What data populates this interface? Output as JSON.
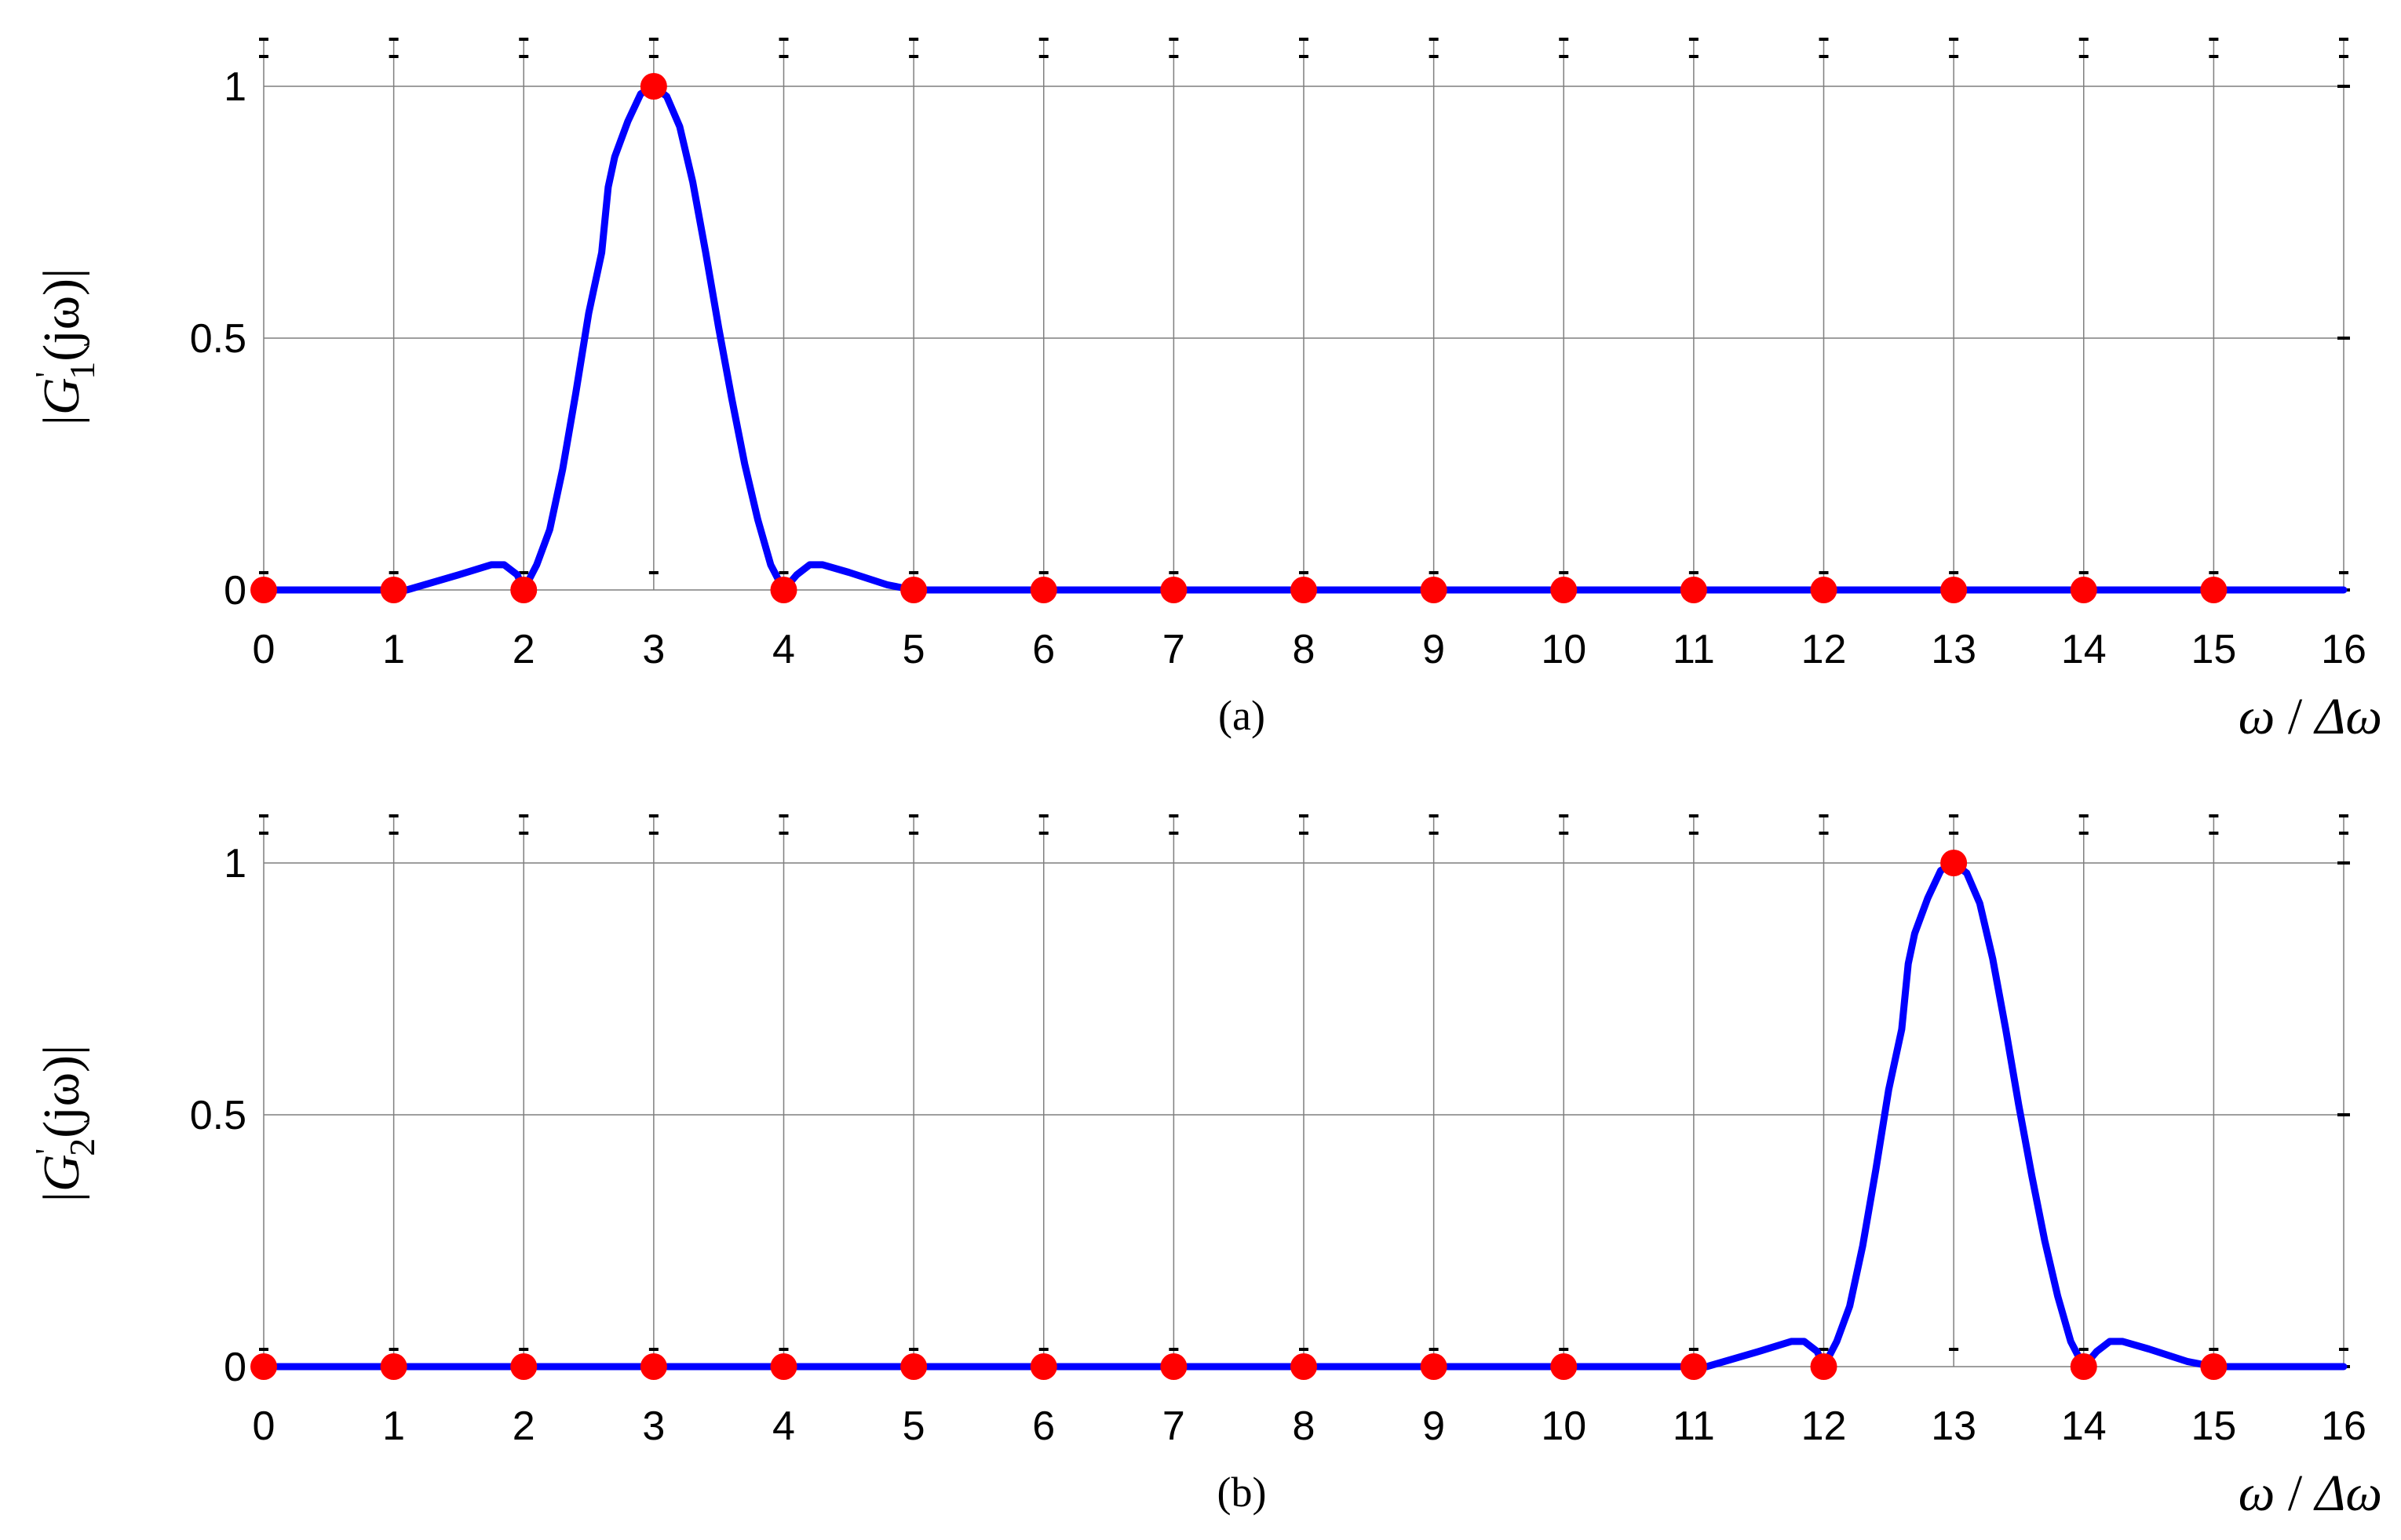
{
  "chart_data": [
    {
      "type": "line",
      "panel_label": "(a)",
      "ylabel": {
        "bar": "|",
        "base": "G",
        "sub": "1",
        "sup": "'",
        "arg": "(jω)"
      },
      "xlabel": {
        "num": "ω",
        "sep": " / ",
        "den": "Δω"
      },
      "xlim": [
        0,
        16
      ],
      "ylim": [
        0,
        1
      ],
      "x_ticks": [
        "0",
        "1",
        "2",
        "3",
        "4",
        "5",
        "6",
        "7",
        "8",
        "9",
        "10",
        "11",
        "12",
        "13",
        "14",
        "15",
        "16"
      ],
      "y_ticks": [
        "0",
        "0.5",
        "1"
      ],
      "grid": true,
      "series": [
        {
          "color": "#0000ff",
          "x": [
            0,
            1.1,
            1.5,
            1.75,
            1.85,
            1.95,
            2.0,
            2.1,
            2.2,
            2.3,
            2.4,
            2.5,
            2.6,
            2.65,
            2.7,
            2.8,
            2.9,
            3.0,
            3.1,
            3.2,
            3.3,
            3.4,
            3.5,
            3.6,
            3.7,
            3.8,
            3.9,
            4.0,
            4.1,
            4.2,
            4.3,
            4.5,
            4.8,
            5.0,
            6,
            7,
            8,
            9,
            10,
            11,
            12,
            13,
            14,
            15,
            15.9,
            16.0
          ],
          "y": [
            0,
            0,
            0.03,
            0.05,
            0.05,
            0.03,
            0,
            0.05,
            0.12,
            0.24,
            0.39,
            0.55,
            0.67,
            0.8,
            0.86,
            0.93,
            0.985,
            1.0,
            0.98,
            0.92,
            0.81,
            0.67,
            0.52,
            0.38,
            0.25,
            0.14,
            0.05,
            0,
            0.03,
            0.05,
            0.05,
            0.035,
            0.01,
            0,
            0,
            0,
            0,
            0,
            0,
            0,
            0,
            0,
            0,
            0,
            0,
            0
          ]
        }
      ],
      "markers": {
        "color": "#ff0000",
        "x": [
          0,
          1,
          2,
          3,
          4,
          5,
          6,
          7,
          8,
          9,
          10,
          11,
          12,
          13,
          14,
          15
        ],
        "y": [
          0,
          0,
          0,
          1,
          0,
          0,
          0,
          0,
          0,
          0,
          0,
          0,
          0,
          0,
          0,
          0
        ]
      }
    },
    {
      "type": "line",
      "panel_label": "(b)",
      "ylabel": {
        "bar": "|",
        "base": "G",
        "sub": "2",
        "sup": "'",
        "arg": "(jω)"
      },
      "xlabel": {
        "num": "ω",
        "sep": " / ",
        "den": "Δω"
      },
      "xlim": [
        0,
        16
      ],
      "ylim": [
        0,
        1
      ],
      "x_ticks": [
        "0",
        "1",
        "2",
        "3",
        "4",
        "5",
        "6",
        "7",
        "8",
        "9",
        "10",
        "11",
        "12",
        "13",
        "14",
        "15",
        "16"
      ],
      "y_ticks": [
        "0",
        "0.5",
        "1"
      ],
      "grid": true,
      "series": [
        {
          "color": "#0000ff",
          "x": [
            0,
            1,
            2,
            3,
            4,
            5,
            6,
            7,
            8,
            9,
            10,
            11,
            11.1,
            11.5,
            11.75,
            11.85,
            11.95,
            12.0,
            12.1,
            12.2,
            12.3,
            12.4,
            12.5,
            12.6,
            12.65,
            12.7,
            12.8,
            12.9,
            13.0,
            13.1,
            13.2,
            13.3,
            13.4,
            13.5,
            13.6,
            13.7,
            13.8,
            13.9,
            14.0,
            14.1,
            14.2,
            14.3,
            14.5,
            14.8,
            15.0,
            15.9,
            16.0
          ],
          "y": [
            0,
            0,
            0,
            0,
            0,
            0,
            0,
            0,
            0,
            0,
            0,
            0,
            0,
            0.03,
            0.05,
            0.05,
            0.03,
            0,
            0.05,
            0.12,
            0.24,
            0.39,
            0.55,
            0.67,
            0.8,
            0.86,
            0.93,
            0.985,
            1.0,
            0.98,
            0.92,
            0.81,
            0.67,
            0.52,
            0.38,
            0.25,
            0.14,
            0.05,
            0,
            0.03,
            0.05,
            0.05,
            0.035,
            0.01,
            0,
            0,
            0
          ]
        }
      ],
      "markers": {
        "color": "#ff0000",
        "x": [
          0,
          1,
          2,
          3,
          4,
          5,
          6,
          7,
          8,
          9,
          10,
          11,
          12,
          13,
          14,
          15
        ],
        "y": [
          0,
          0,
          0,
          0,
          0,
          0,
          0,
          0,
          0,
          0,
          0,
          0,
          0,
          1,
          0,
          0
        ]
      }
    }
  ]
}
